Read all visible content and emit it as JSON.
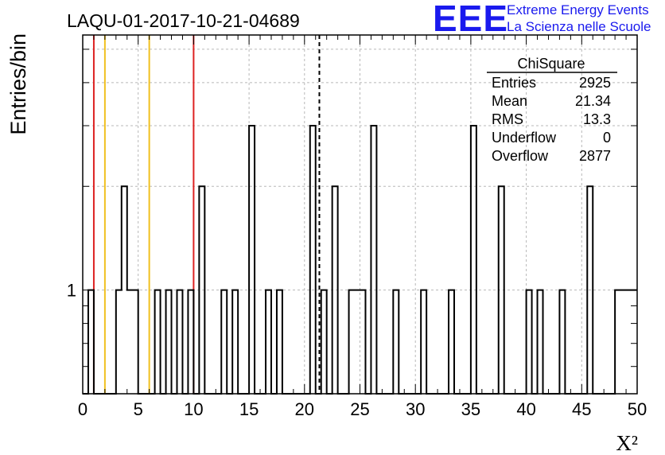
{
  "header": {
    "run_title": "LAQU-01-2017-10-21-04689"
  },
  "logo": {
    "mark": "EEE",
    "line1": "Extreme Energy Events",
    "line2": "La Scienza nelle Scuole",
    "color": "#1a1aee"
  },
  "stats": {
    "title": "ChiSquare",
    "rows": [
      {
        "label": "Entries",
        "value": "2925"
      },
      {
        "label": "Mean",
        "value": "21.34"
      },
      {
        "label": "RMS",
        "value": "13.3"
      },
      {
        "label": "Underflow",
        "value": "0"
      },
      {
        "label": "Overflow",
        "value": "2877"
      }
    ]
  },
  "chart_data": {
    "type": "bar",
    "histogram_style": "step",
    "title": "LAQU-01-2017-10-21-04689",
    "xlabel": "X²",
    "ylabel": "Entries/bin",
    "xlim": [
      0,
      50
    ],
    "ylim": [
      0.5,
      5.5
    ],
    "y_scale": "log",
    "grid": true,
    "bin_width": 0.5,
    "x_ticks": [
      0,
      5,
      10,
      15,
      20,
      25,
      30,
      35,
      40,
      45,
      50
    ],
    "x_tick_labels": [
      "0",
      "5",
      "10",
      "15",
      "20",
      "25",
      "30",
      "35",
      "40",
      "45",
      "50"
    ],
    "y_ticks": [
      1
    ],
    "y_tick_labels": [
      "1"
    ],
    "bins": [
      {
        "x": 0.5,
        "y": 1
      },
      {
        "x": 3.0,
        "y": 1
      },
      {
        "x": 3.5,
        "y": 2
      },
      {
        "x": 4.0,
        "y": 1
      },
      {
        "x": 4.5,
        "y": 1
      },
      {
        "x": 6.5,
        "y": 1
      },
      {
        "x": 7.5,
        "y": 1
      },
      {
        "x": 8.5,
        "y": 1
      },
      {
        "x": 9.5,
        "y": 1
      },
      {
        "x": 10.5,
        "y": 2
      },
      {
        "x": 12.5,
        "y": 1
      },
      {
        "x": 13.5,
        "y": 1
      },
      {
        "x": 15.0,
        "y": 3
      },
      {
        "x": 16.5,
        "y": 1
      },
      {
        "x": 17.5,
        "y": 1
      },
      {
        "x": 20.5,
        "y": 3
      },
      {
        "x": 21.5,
        "y": 1
      },
      {
        "x": 22.5,
        "y": 2
      },
      {
        "x": 24.0,
        "y": 1
      },
      {
        "x": 24.5,
        "y": 1
      },
      {
        "x": 25.0,
        "y": 1
      },
      {
        "x": 26.0,
        "y": 3
      },
      {
        "x": 28.0,
        "y": 1
      },
      {
        "x": 30.5,
        "y": 1
      },
      {
        "x": 33.0,
        "y": 1
      },
      {
        "x": 35.0,
        "y": 3
      },
      {
        "x": 37.5,
        "y": 2
      },
      {
        "x": 40.0,
        "y": 1
      },
      {
        "x": 41.0,
        "y": 1
      },
      {
        "x": 43.0,
        "y": 1
      },
      {
        "x": 45.5,
        "y": 2
      },
      {
        "x": 48.0,
        "y": 1
      },
      {
        "x": 48.5,
        "y": 1
      },
      {
        "x": 49.0,
        "y": 1
      },
      {
        "x": 49.5,
        "y": 1
      }
    ],
    "reference_lines": [
      {
        "x": 1,
        "color": "#dd2222",
        "style": "solid"
      },
      {
        "x": 2,
        "color": "#f0c020",
        "style": "solid"
      },
      {
        "x": 6,
        "color": "#f0c020",
        "style": "solid"
      },
      {
        "x": 10,
        "color": "#dd2222",
        "style": "solid"
      },
      {
        "x": 21.34,
        "color": "#000000",
        "style": "dashed"
      }
    ]
  }
}
